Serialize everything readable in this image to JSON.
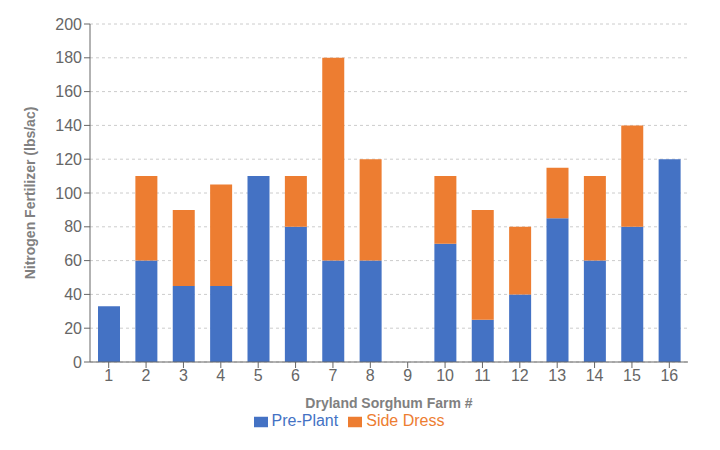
{
  "chart_data": {
    "type": "bar",
    "stacked": true,
    "xlabel": "Dryland Sorghum Farm #",
    "ylabel": "Nitrogen Fertilizer (lbs/ac)",
    "categories": [
      "1",
      "2",
      "3",
      "4",
      "5",
      "6",
      "7",
      "8",
      "9",
      "10",
      "11",
      "12",
      "13",
      "14",
      "15",
      "16"
    ],
    "series": [
      {
        "name": "Pre-Plant",
        "color": "#4472C4",
        "values": [
          33,
          60,
          45,
          45,
          110,
          80,
          60,
          60,
          0,
          70,
          25,
          40,
          85,
          60,
          80,
          120
        ]
      },
      {
        "name": "Side Dress",
        "color": "#ED7D31",
        "values": [
          0,
          50,
          45,
          60,
          0,
          30,
          120,
          60,
          0,
          40,
          65,
          40,
          30,
          50,
          60,
          0
        ]
      }
    ],
    "ylim": [
      0,
      200
    ],
    "yticks": [
      0,
      20,
      40,
      60,
      80,
      100,
      120,
      140,
      160,
      180,
      200
    ],
    "grid": true,
    "legend": "bottom"
  }
}
